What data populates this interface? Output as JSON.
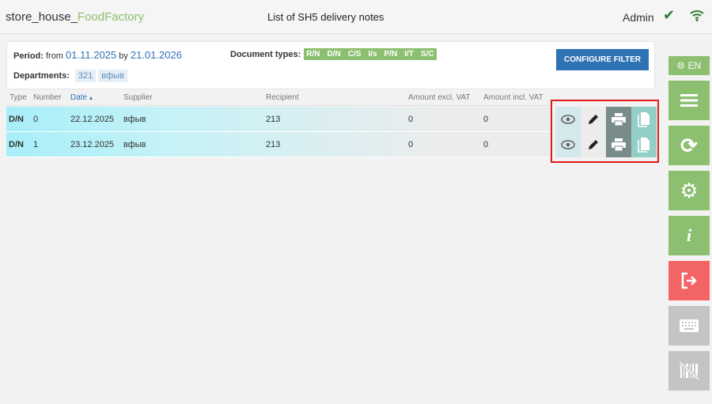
{
  "header": {
    "brand_main": "store_house_",
    "brand_accent": "FoodFactory",
    "title": "List of SH5 delivery notes",
    "user": "Admin"
  },
  "filter": {
    "period_label": "Period:",
    "from_label": "from",
    "from": "01.11.2025",
    "by_label": "by",
    "to": "21.01.2026",
    "doc_types_label": "Document types:",
    "doc_types": [
      "R/N",
      "D/N",
      "C/S",
      "I/s",
      "P/N",
      "I/T",
      "S/C"
    ],
    "departments_label": "Departments:",
    "departments": [
      "321",
      "вфыв"
    ],
    "configure_button": "CONFIGURE FILTER"
  },
  "table": {
    "columns": [
      "Type",
      "Number",
      "Date",
      "Supplier",
      "Recipient",
      "Amount excl. VAT",
      "Amount incl. VAT"
    ],
    "sort_column": "Date",
    "sort_indicator": "▴",
    "rows": [
      {
        "type": "D/N",
        "number": "0",
        "date": "22.12.2025",
        "supplier": "вфыв",
        "recipient": "213",
        "amount_excl": "0",
        "amount_incl": "0"
      },
      {
        "type": "D/N",
        "number": "1",
        "date": "23.12.2025",
        "supplier": "вфыв",
        "recipient": "213",
        "amount_excl": "0",
        "amount_incl": "0"
      }
    ]
  },
  "sidebar": {
    "language": "EN",
    "buttons": [
      "menu-icon",
      "refresh-icon",
      "gear-icon",
      "info-icon",
      "logout-icon",
      "keyboard-icon",
      "barcode-off-icon"
    ]
  },
  "colors": {
    "accent_green": "#8cbf6f",
    "primary_blue": "#2f73b5",
    "danger": "#f36565",
    "disabled": "#c4c4c4",
    "highlight": "#e21a1a"
  }
}
